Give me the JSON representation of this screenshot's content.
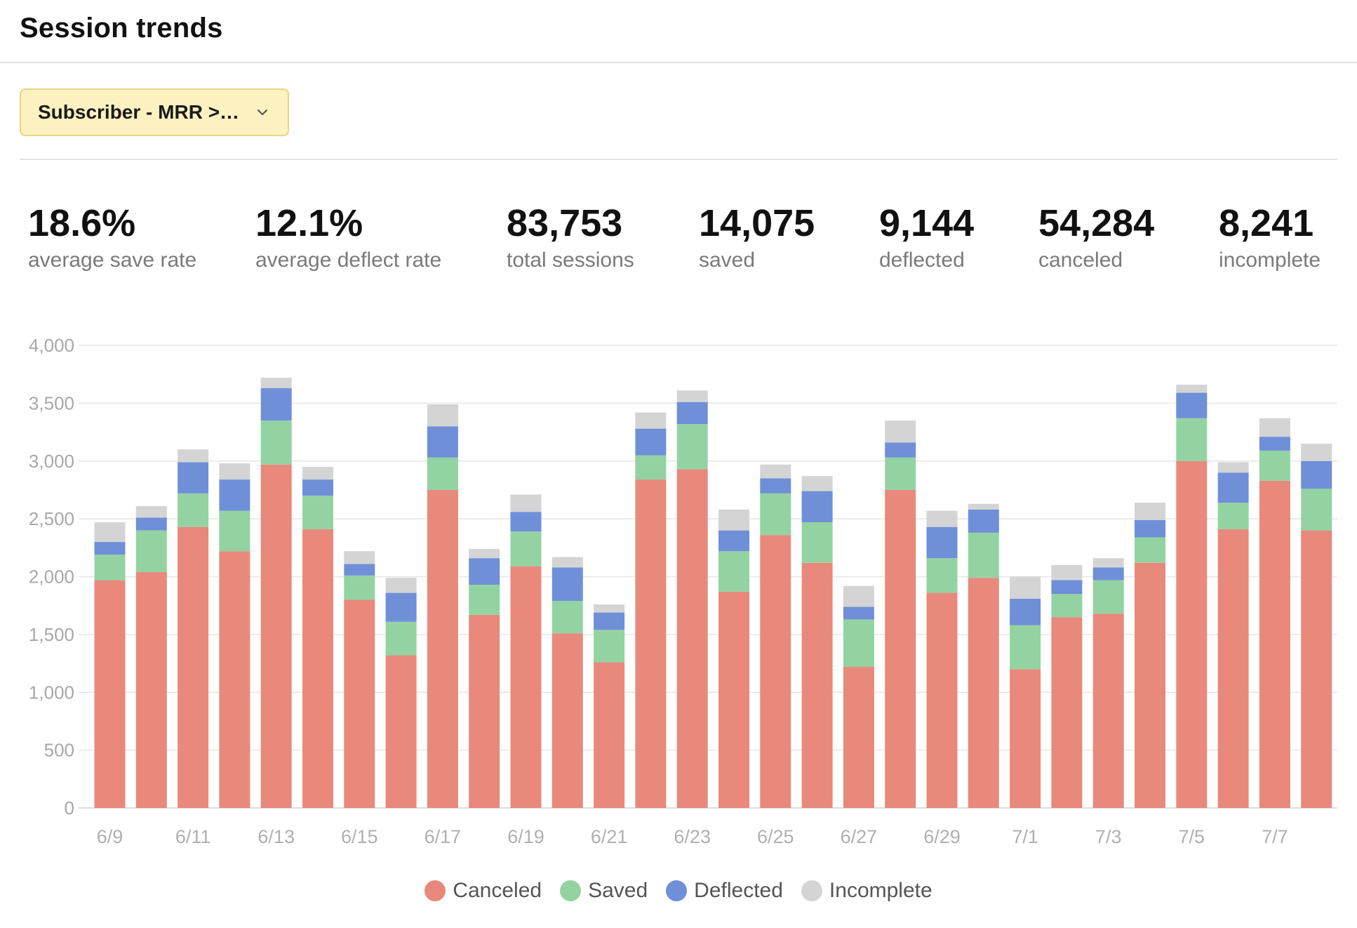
{
  "header": {
    "title": "Session trends"
  },
  "filter": {
    "label": "Subscriber - MRR >…"
  },
  "stats": [
    {
      "value": "18.6%",
      "label": "average save rate"
    },
    {
      "value": "12.1%",
      "label": "average deflect rate"
    },
    {
      "value": "83,753",
      "label": "total sessions"
    },
    {
      "value": "14,075",
      "label": "saved"
    },
    {
      "value": "9,144",
      "label": "deflected"
    },
    {
      "value": "54,284",
      "label": "canceled"
    },
    {
      "value": "8,241",
      "label": "incomplete"
    }
  ],
  "legend": [
    {
      "name": "Canceled",
      "color": "#e8897c"
    },
    {
      "name": "Saved",
      "color": "#93d3a2"
    },
    {
      "name": "Deflected",
      "color": "#6f8fd8"
    },
    {
      "name": "Incomplete",
      "color": "#d4d4d4"
    }
  ],
  "chart_data": {
    "type": "bar",
    "stacked": true,
    "categories": [
      "6/9",
      "6/10",
      "6/11",
      "6/12",
      "6/13",
      "6/14",
      "6/15",
      "6/16",
      "6/17",
      "6/18",
      "6/19",
      "6/20",
      "6/21",
      "6/22",
      "6/23",
      "6/24",
      "6/25",
      "6/26",
      "6/27",
      "6/28",
      "6/29",
      "6/30",
      "7/1",
      "7/2",
      "7/3",
      "7/4",
      "7/5",
      "7/6",
      "7/7",
      "7/8"
    ],
    "x_tick_labels": [
      "6/9",
      "6/11",
      "6/13",
      "6/15",
      "6/17",
      "6/19",
      "6/21",
      "6/23",
      "6/25",
      "6/27",
      "6/29",
      "7/1",
      "7/3",
      "7/5",
      "7/7"
    ],
    "series": [
      {
        "name": "Canceled",
        "color": "#e8897c",
        "values": [
          1970,
          2040,
          2430,
          2220,
          2970,
          2410,
          1800,
          1320,
          2750,
          1670,
          2090,
          1510,
          1260,
          2840,
          2930,
          1870,
          2360,
          2120,
          1220,
          2750,
          1860,
          1990,
          1200,
          1650,
          1680,
          2120,
          3000,
          2410,
          2830,
          2400
        ]
      },
      {
        "name": "Saved",
        "color": "#93d3a2",
        "values": [
          220,
          360,
          290,
          350,
          380,
          290,
          210,
          290,
          280,
          260,
          300,
          280,
          280,
          210,
          390,
          350,
          360,
          350,
          410,
          280,
          300,
          390,
          380,
          200,
          290,
          220,
          370,
          230,
          260,
          360
        ]
      },
      {
        "name": "Deflected",
        "color": "#6f8fd8",
        "values": [
          110,
          110,
          270,
          270,
          280,
          140,
          100,
          250,
          270,
          230,
          170,
          290,
          150,
          230,
          190,
          180,
          130,
          270,
          110,
          130,
          270,
          200,
          230,
          120,
          110,
          150,
          220,
          260,
          120,
          240
        ]
      },
      {
        "name": "Incomplete",
        "color": "#d4d4d4",
        "values": [
          170,
          100,
          110,
          140,
          90,
          110,
          110,
          130,
          190,
          80,
          150,
          90,
          70,
          140,
          100,
          180,
          120,
          130,
          180,
          190,
          140,
          50,
          190,
          130,
          80,
          150,
          70,
          90,
          160,
          150
        ]
      }
    ],
    "ylim": [
      0,
      4000
    ],
    "y_ticks": [
      "0",
      "500",
      "1,000",
      "1,500",
      "2,000",
      "2,500",
      "3,000",
      "3,500",
      "4,000"
    ],
    "grid": true,
    "legend_position": "bottom"
  }
}
